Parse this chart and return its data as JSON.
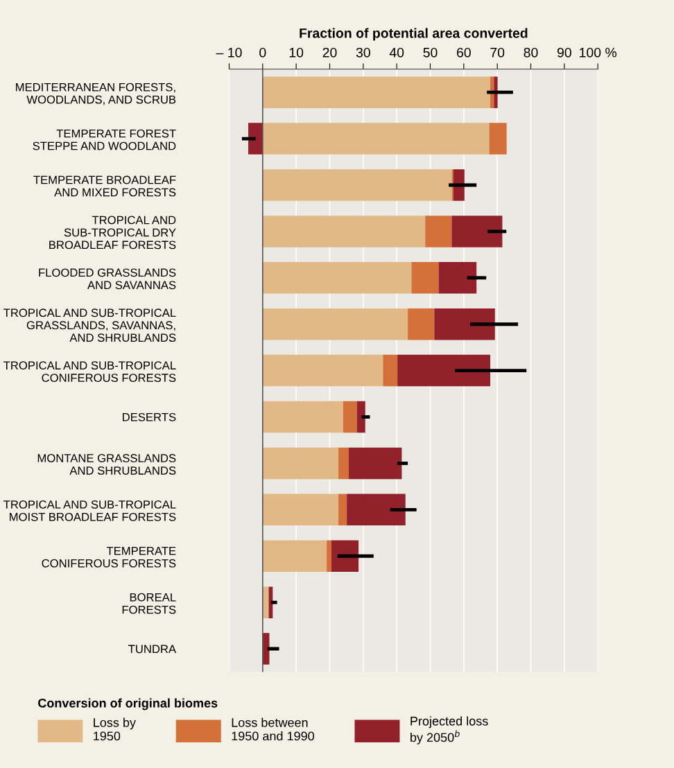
{
  "chart_data": {
    "type": "bar",
    "orientation": "horizontal",
    "stacked": true,
    "xlabel": "Fraction of potential area converted",
    "legend_title": "Conversion of original biomes",
    "categories": [
      "MEDITERRANEAN FORESTS,\nWOODLANDS, AND SCRUB",
      "TEMPERATE FOREST\nSTEPPE AND WOODLAND",
      "TEMPERATE BROADLEAF\nAND MIXED FORESTS",
      "TROPICAL AND\nSUB-TROPICAL DRY\nBROADLEAF FORESTS",
      "FLOODED GRASSLANDS\nAND SAVANNAS",
      "TROPICAL AND SUB-TROPICAL\nGRASSLANDS, SAVANNAS,\nAND SHRUBLANDS",
      "TROPICAL AND SUB-TROPICAL\nCONIFEROUS FORESTS",
      "DESERTS",
      "MONTANE GRASSLANDS\nAND SHRUBLANDS",
      "TROPICAL AND SUB-TROPICAL\nMOIST BROADLEAF FORESTS",
      "TEMPERATE\nCONIFEROUS FORESTS",
      "BOREAL\nFORESTS",
      "TUNDRA"
    ],
    "series": [
      {
        "name": "Loss by\n1950",
        "color": "#e2b986",
        "values": [
          67.9,
          67.6,
          56.5,
          48.5,
          44.4,
          43.3,
          35.9,
          24.0,
          22.6,
          22.6,
          19.1,
          1.8,
          0
        ]
      },
      {
        "name": "Loss between\n1950 and 1990",
        "color": "#d4713a",
        "values": [
          1.1,
          5.2,
          0.4,
          7.9,
          8.1,
          7.9,
          4.3,
          4.1,
          3.1,
          2.5,
          1.4,
          null,
          0
        ]
      },
      {
        "name": "Projected loss\nby 2050$^{b}$",
        "color": "#92212b",
        "values": [
          1.1,
          -4.3,
          3.3,
          15.1,
          11.3,
          18.1,
          27.7,
          2.5,
          15.8,
          17.5,
          8.1,
          1.2,
          2.0
        ],
        "errors": [
          [
            66.9,
            74.7
          ],
          [
            -6.2,
            -2.1
          ],
          [
            55.5,
            63.8
          ],
          [
            67.1,
            72.7
          ],
          [
            61.0,
            66.7
          ],
          [
            61.9,
            76.2
          ],
          [
            57.4,
            78.7
          ],
          [
            29.5,
            32.0
          ],
          [
            40.2,
            43.3
          ],
          [
            38.0,
            45.9
          ],
          [
            22.3,
            33.1
          ],
          [
            2.5,
            4.3
          ],
          [
            1.4,
            4.9
          ]
        ]
      }
    ],
    "xlim": [
      -10,
      100
    ],
    "xticks": [
      {
        "value": -10,
        "label": "– 10"
      },
      0,
      10,
      20,
      30,
      40,
      50,
      60,
      70,
      80,
      90,
      {
        "value": 100,
        "label": "100 %"
      }
    ],
    "grid": "x",
    "legend": "bottom"
  }
}
